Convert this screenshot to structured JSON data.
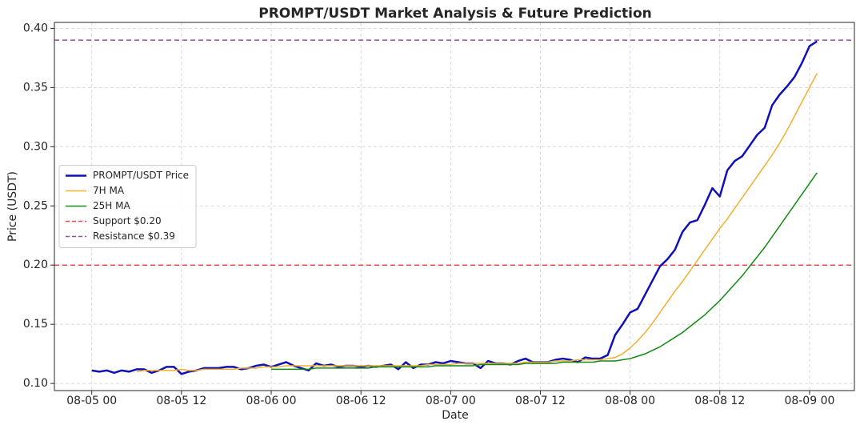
{
  "chart_data": {
    "type": "line",
    "title": "PROMPT/USDT Market Analysis & Future Prediction",
    "xlabel": "Date",
    "ylabel": "Price (USDT)",
    "x": [
      "08-05 00",
      "08-05 01",
      "08-05 02",
      "08-05 03",
      "08-05 04",
      "08-05 05",
      "08-05 06",
      "08-05 07",
      "08-05 08",
      "08-05 09",
      "08-05 10",
      "08-05 11",
      "08-05 12",
      "08-05 13",
      "08-05 14",
      "08-05 15",
      "08-05 16",
      "08-05 17",
      "08-05 18",
      "08-05 19",
      "08-05 20",
      "08-05 21",
      "08-05 22",
      "08-05 23",
      "08-06 00",
      "08-06 01",
      "08-06 02",
      "08-06 03",
      "08-06 04",
      "08-06 05",
      "08-06 06",
      "08-06 07",
      "08-06 08",
      "08-06 09",
      "08-06 10",
      "08-06 11",
      "08-06 12",
      "08-06 13",
      "08-06 14",
      "08-06 15",
      "08-06 16",
      "08-06 17",
      "08-06 18",
      "08-06 19",
      "08-06 20",
      "08-06 21",
      "08-06 22",
      "08-06 23",
      "08-07 00",
      "08-07 01",
      "08-07 02",
      "08-07 03",
      "08-07 04",
      "08-07 05",
      "08-07 06",
      "08-07 07",
      "08-07 08",
      "08-07 09",
      "08-07 10",
      "08-07 11",
      "08-07 12",
      "08-07 13",
      "08-07 14",
      "08-07 15",
      "08-07 16",
      "08-07 17",
      "08-07 18",
      "08-07 19",
      "08-07 20",
      "08-07 21",
      "08-07 22",
      "08-07 23",
      "08-08 00",
      "08-08 01",
      "08-08 02",
      "08-08 03",
      "08-08 04",
      "08-08 05",
      "08-08 06",
      "08-08 07",
      "08-08 08",
      "08-08 09",
      "08-08 10",
      "08-08 11",
      "08-08 12",
      "08-08 13",
      "08-08 14",
      "08-08 15",
      "08-08 16",
      "08-08 17",
      "08-08 18",
      "08-08 19",
      "08-08 20",
      "08-08 21",
      "08-08 22",
      "08-08 23",
      "08-09 00",
      "08-09 01"
    ],
    "series": [
      {
        "name": "PROMPT/USDT Price",
        "color": "#1010b8",
        "width": 2.5,
        "values": [
          0.111,
          0.11,
          0.111,
          0.109,
          0.111,
          0.11,
          0.112,
          0.112,
          0.109,
          0.111,
          0.114,
          0.114,
          0.108,
          0.11,
          0.111,
          0.113,
          0.113,
          0.113,
          0.114,
          0.114,
          0.112,
          0.113,
          0.115,
          0.116,
          0.114,
          0.116,
          0.118,
          0.115,
          0.113,
          0.111,
          0.117,
          0.115,
          0.116,
          0.114,
          0.115,
          0.115,
          0.114,
          0.115,
          0.114,
          0.115,
          0.116,
          0.112,
          0.118,
          0.113,
          0.116,
          0.116,
          0.118,
          0.117,
          0.119,
          0.118,
          0.117,
          0.117,
          0.113,
          0.119,
          0.117,
          0.117,
          0.116,
          0.119,
          0.121,
          0.118,
          0.118,
          0.118,
          0.12,
          0.121,
          0.12,
          0.118,
          0.122,
          0.121,
          0.121,
          0.124,
          0.141,
          0.15,
          0.16,
          0.163,
          0.175,
          0.187,
          0.199,
          0.205,
          0.213,
          0.228,
          0.236,
          0.238,
          0.251,
          0.265,
          0.258,
          0.28,
          0.288,
          0.292,
          0.301,
          0.31,
          0.316,
          0.335,
          0.344,
          0.351,
          0.359,
          0.371,
          0.385,
          0.389
        ]
      },
      {
        "name": "7H MA",
        "color": "#f0b030",
        "width": 1.5,
        "values": [
          null,
          null,
          null,
          null,
          null,
          null,
          0.11,
          0.111,
          0.111,
          0.111,
          0.111,
          0.111,
          0.112,
          0.111,
          0.111,
          0.112,
          0.112,
          0.112,
          0.112,
          0.112,
          0.113,
          0.113,
          0.113,
          0.114,
          0.114,
          0.114,
          0.115,
          0.115,
          0.115,
          0.115,
          0.115,
          0.115,
          0.115,
          0.115,
          0.115,
          0.115,
          0.115,
          0.115,
          0.115,
          0.115,
          0.115,
          0.115,
          0.115,
          0.115,
          0.115,
          0.116,
          0.116,
          0.116,
          0.116,
          0.117,
          0.117,
          0.117,
          0.117,
          0.117,
          0.117,
          0.117,
          0.117,
          0.117,
          0.118,
          0.118,
          0.118,
          0.118,
          0.119,
          0.119,
          0.119,
          0.12,
          0.12,
          0.12,
          0.12,
          0.121,
          0.122,
          0.125,
          0.13,
          0.136,
          0.143,
          0.151,
          0.16,
          0.169,
          0.178,
          0.186,
          0.195,
          0.204,
          0.213,
          0.222,
          0.231,
          0.239,
          0.248,
          0.257,
          0.266,
          0.275,
          0.284,
          0.293,
          0.303,
          0.314,
          0.326,
          0.338,
          0.35,
          0.362
        ]
      },
      {
        "name": "25H MA",
        "color": "#138a13",
        "width": 1.5,
        "values": [
          null,
          null,
          null,
          null,
          null,
          null,
          null,
          null,
          null,
          null,
          null,
          null,
          null,
          null,
          null,
          null,
          null,
          null,
          null,
          null,
          null,
          null,
          null,
          null,
          0.112,
          0.112,
          0.112,
          0.112,
          0.112,
          0.112,
          0.113,
          0.113,
          0.113,
          0.113,
          0.113,
          0.113,
          0.113,
          0.113,
          0.114,
          0.114,
          0.114,
          0.114,
          0.114,
          0.114,
          0.114,
          0.114,
          0.115,
          0.115,
          0.115,
          0.115,
          0.115,
          0.115,
          0.116,
          0.116,
          0.116,
          0.116,
          0.116,
          0.116,
          0.117,
          0.117,
          0.117,
          0.117,
          0.117,
          0.118,
          0.118,
          0.118,
          0.118,
          0.118,
          0.119,
          0.119,
          0.119,
          0.12,
          0.121,
          0.123,
          0.125,
          0.128,
          0.131,
          0.135,
          0.139,
          0.143,
          0.148,
          0.153,
          0.158,
          0.164,
          0.17,
          0.177,
          0.184,
          0.191,
          0.199,
          0.207,
          0.215,
          0.224,
          0.233,
          0.242,
          0.251,
          0.26,
          0.269,
          0.278
        ]
      }
    ],
    "hlines": [
      {
        "name": "Support $0.20",
        "value": 0.2,
        "color": "#e05050"
      },
      {
        "name": "Resistance $0.39",
        "value": 0.39,
        "color": "#9050a0"
      }
    ],
    "xlim": [
      "08-04 19",
      "08-09 06"
    ],
    "xticks": [
      "08-05 00",
      "08-05 12",
      "08-06 00",
      "08-06 12",
      "08-07 00",
      "08-07 12",
      "08-08 00",
      "08-08 12",
      "08-09 00"
    ],
    "ylim": [
      0.094,
      0.405
    ],
    "yticks": [
      {
        "value": 0.1,
        "label": "0.10"
      },
      {
        "value": 0.15,
        "label": "0.15"
      },
      {
        "value": 0.2,
        "label": "0.20"
      },
      {
        "value": 0.25,
        "label": "0.25"
      },
      {
        "value": 0.3,
        "label": "0.30"
      },
      {
        "value": 0.35,
        "label": "0.35"
      },
      {
        "value": 0.4,
        "label": "0.40"
      }
    ],
    "grid": true,
    "legend": "center left"
  }
}
